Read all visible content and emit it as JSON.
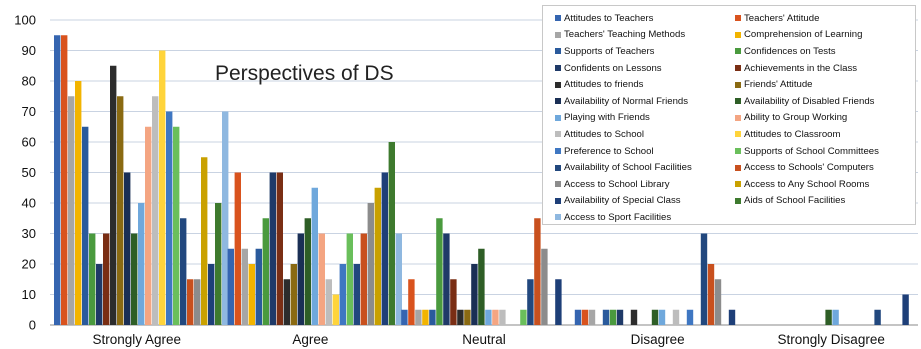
{
  "chart_data": {
    "type": "bar",
    "title": "Perspectives of DS",
    "xlabel": "",
    "ylabel": "",
    "ylim": [
      0,
      100
    ],
    "yticks": [
      0,
      10,
      20,
      30,
      40,
      50,
      60,
      70,
      80,
      90,
      100
    ],
    "grid": true,
    "legend_position": "top-right",
    "categories": [
      "Strongly Agree",
      "Agree",
      "Neutral",
      "Disagree",
      "Strongly Disagree"
    ],
    "series": [
      {
        "name": "Attitudes to Teachers",
        "color": "#3565b0",
        "values": [
          95,
          25,
          5,
          5,
          0
        ]
      },
      {
        "name": "Teachers' Attitude",
        "color": "#d9531e",
        "values": [
          95,
          50,
          15,
          5,
          0
        ]
      },
      {
        "name": "Teachers' Teaching Methods",
        "color": "#a6a6a6",
        "values": [
          75,
          25,
          5,
          5,
          0
        ]
      },
      {
        "name": "Comprehension of Learning",
        "color": "#f2b400",
        "values": [
          80,
          20,
          5,
          0,
          0
        ]
      },
      {
        "name": "Supports of Teachers",
        "color": "#2a5a9c",
        "values": [
          65,
          25,
          5,
          5,
          0
        ]
      },
      {
        "name": "Confidences on Tests",
        "color": "#4a9a3e",
        "values": [
          30,
          35,
          35,
          5,
          0
        ]
      },
      {
        "name": "Confidents on Lessons",
        "color": "#1f3a68",
        "values": [
          20,
          50,
          30,
          5,
          0
        ]
      },
      {
        "name": "Achievements in the Class",
        "color": "#7a2e14",
        "values": [
          30,
          50,
          15,
          0,
          0
        ]
      },
      {
        "name": "Attitudes to friends",
        "color": "#2c2c2c",
        "values": [
          85,
          15,
          5,
          5,
          0
        ]
      },
      {
        "name": "Friends' Attitude",
        "color": "#8a6a12",
        "values": [
          75,
          20,
          5,
          0,
          0
        ]
      },
      {
        "name": "Availability of Normal Friends",
        "color": "#1a2f55",
        "values": [
          50,
          30,
          20,
          0,
          0
        ]
      },
      {
        "name": "Availability of Disabled Friends",
        "color": "#2e5e26",
        "values": [
          30,
          35,
          25,
          5,
          5
        ]
      },
      {
        "name": "Playing with Friends",
        "color": "#6fa8dc",
        "values": [
          40,
          45,
          5,
          5,
          5
        ]
      },
      {
        "name": "Ability to Group Working",
        "color": "#f4a582",
        "values": [
          65,
          30,
          5,
          0,
          0
        ]
      },
      {
        "name": "Attitudes to School",
        "color": "#bdbdbd",
        "values": [
          75,
          15,
          5,
          5,
          0
        ]
      },
      {
        "name": "Attitudes to Classroom",
        "color": "#ffd43b",
        "values": [
          90,
          10,
          0,
          0,
          0
        ]
      },
      {
        "name": "Preference to School",
        "color": "#3f77c2",
        "values": [
          70,
          20,
          0,
          5,
          0
        ]
      },
      {
        "name": "Supports of School Committees",
        "color": "#6abf5b",
        "values": [
          65,
          30,
          5,
          0,
          0
        ]
      },
      {
        "name": "Availability of School Facilities",
        "color": "#22487e",
        "values": [
          35,
          20,
          15,
          30,
          5
        ]
      },
      {
        "name": "Access to Schools' Computers",
        "color": "#c8501e",
        "values": [
          15,
          30,
          35,
          20,
          0
        ]
      },
      {
        "name": "Access to School Library",
        "color": "#8c8c8c",
        "values": [
          15,
          40,
          25,
          15,
          0
        ]
      },
      {
        "name": "Access to Any School Rooms",
        "color": "#c9a100",
        "values": [
          55,
          45,
          0,
          0,
          0
        ]
      },
      {
        "name": "Availability of Special Class",
        "color": "#1e3f78",
        "values": [
          20,
          50,
          15,
          5,
          10
        ]
      },
      {
        "name": "Aids of School Facilities",
        "color": "#3e7a2e",
        "values": [
          40,
          60,
          0,
          0,
          0
        ]
      },
      {
        "name": "Access to Sport Facilities",
        "color": "#8fb8e0",
        "values": [
          70,
          30,
          0,
          0,
          0
        ]
      }
    ]
  }
}
